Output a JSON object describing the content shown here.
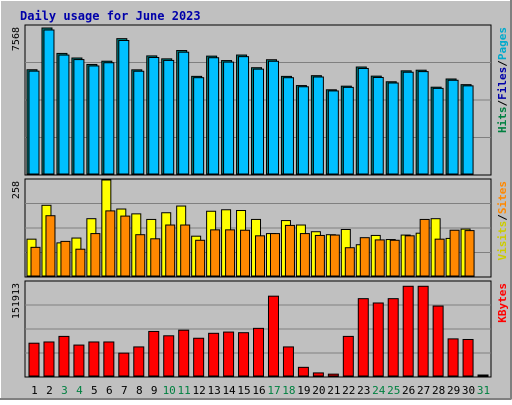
{
  "title": "Daily usage for June 2023",
  "colors": {
    "background": "#c0c0c0",
    "title": "#0000aa",
    "hits": "#00cccc",
    "files": "#0000ff",
    "pages": "#00c0ff",
    "visits": "#ffff00",
    "sites": "#ff8800",
    "kbytes": "#ff0000",
    "weekday_label": "#000000",
    "weekend_label": "#008040"
  },
  "chart_data": [
    {
      "type": "bar",
      "panel": "top",
      "max_label": "7568",
      "right_labels": [
        {
          "text": "Hits",
          "color": "#008040"
        },
        {
          "text": "/",
          "color": "#000000"
        },
        {
          "text": "Files",
          "color": "#0000aa"
        },
        {
          "text": "/",
          "color": "#000000"
        },
        {
          "text": "Pages",
          "color": "#00aacc"
        }
      ],
      "ylim": [
        0,
        7568
      ],
      "series": [
        {
          "name": "Hits",
          "values": [
            5405,
            7568,
            6250,
            6013,
            5678,
            5847,
            7016,
            5400,
            6122,
            5969,
            6401,
            5061,
            6110,
            5880,
            6167,
            5510,
            5924,
            5060,
            4584,
            5097,
            4366,
            4553,
            5546,
            5073,
            4782,
            5348,
            5381,
            4500,
            4925,
            4632
          ]
        },
        {
          "name": "Files",
          "values": [
            5405,
            7568,
            6250,
            6013,
            5678,
            5847,
            7016,
            5400,
            6122,
            5969,
            6401,
            5061,
            6110,
            5880,
            6167,
            5510,
            5924,
            5060,
            4584,
            5097,
            4366,
            4553,
            5546,
            5073,
            4782,
            5348,
            5381,
            4500,
            4925,
            4632
          ]
        }
      ]
    },
    {
      "type": "bar",
      "panel": "middle",
      "max_label": "258",
      "right_labels": [
        {
          "text": "Visits",
          "color": "#cccc00"
        },
        {
          "text": "/",
          "color": "#000000"
        },
        {
          "text": "Sites",
          "color": "#ff8800"
        }
      ],
      "ylim": [
        0,
        258
      ],
      "series": [
        {
          "name": "Visits",
          "values": [
            99,
            190,
            89,
            102,
            154,
            258,
            180,
            167,
            152,
            170,
            188,
            107,
            174,
            178,
            176,
            152,
            114,
            149,
            137,
            119,
            111,
            125,
            84,
            109,
            98,
            110,
            115,
            154,
            101,
            126
          ]
        },
        {
          "name": "Sites",
          "values": [
            77,
            162,
            93,
            72,
            114,
            175,
            161,
            111,
            100,
            137,
            137,
            96,
            124,
            124,
            123,
            108,
            114,
            136,
            114,
            109,
            110,
            76,
            103,
            97,
            96,
            108,
            152,
            99,
            123,
            122
          ]
        }
      ]
    },
    {
      "type": "bar",
      "panel": "bottom",
      "max_label": "151913",
      "right_labels": [
        {
          "text": "KBytes",
          "color": "#ff0000"
        }
      ],
      "ylim": [
        0,
        151913
      ],
      "series": [
        {
          "name": "KBytes",
          "values": [
            53000,
            55000,
            64000,
            50000,
            55000,
            55000,
            37000,
            47000,
            72000,
            65000,
            74000,
            61000,
            69000,
            71000,
            70000,
            77000,
            129000,
            47000,
            14000,
            5000,
            3000,
            64000,
            125000,
            118000,
            125000,
            145000,
            145000,
            113000,
            60000,
            59000,
            0
          ]
        }
      ]
    }
  ],
  "x_labels": [
    "1",
    "2",
    "3",
    "4",
    "5",
    "6",
    "7",
    "8",
    "9",
    "10",
    "11",
    "12",
    "13",
    "14",
    "15",
    "16",
    "17",
    "18",
    "19",
    "20",
    "21",
    "22",
    "23",
    "24",
    "25",
    "26",
    "27",
    "28",
    "29",
    "30",
    "31"
  ],
  "weekend_days": [
    "3",
    "4",
    "10",
    "11",
    "17",
    "18",
    "24",
    "25",
    "31"
  ]
}
